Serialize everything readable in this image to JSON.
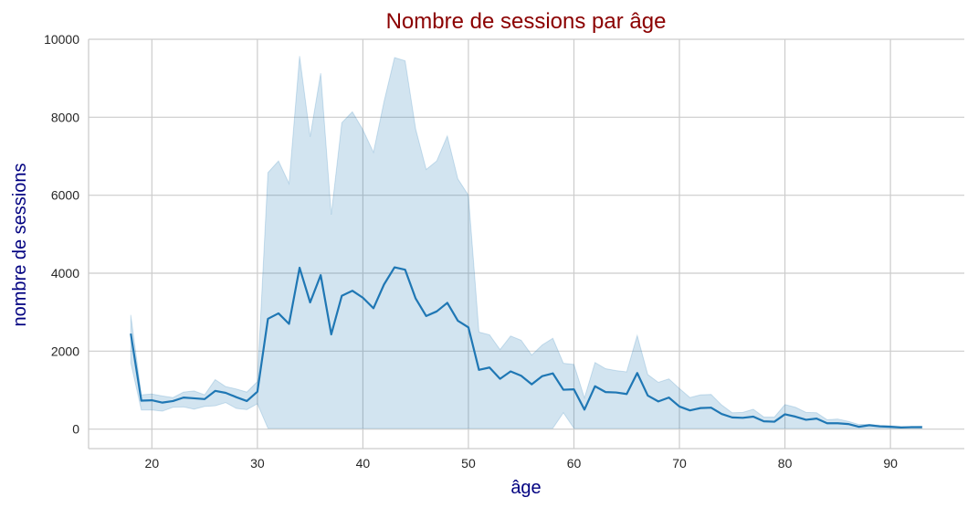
{
  "chart_data": {
    "type": "line",
    "title": "Nombre de sessions par âge",
    "xlabel": "âge",
    "ylabel": "nombre de sessions",
    "xlim": [
      14,
      97
    ],
    "ylim": [
      -500,
      10000
    ],
    "xticks": [
      20,
      30,
      40,
      50,
      60,
      70,
      80,
      90
    ],
    "yticks": [
      0,
      2000,
      4000,
      6000,
      8000,
      10000
    ],
    "grid": true,
    "colors": {
      "title": "#8b0000",
      "labels": "#000080",
      "line": "#1f77b4",
      "band": "#1f77b4",
      "grid": "#cccccc",
      "spine": "#cccccc"
    },
    "x": [
      18,
      19,
      20,
      21,
      22,
      23,
      24,
      25,
      26,
      27,
      28,
      29,
      30,
      31,
      32,
      33,
      34,
      35,
      36,
      37,
      38,
      39,
      40,
      41,
      42,
      43,
      44,
      45,
      46,
      47,
      48,
      49,
      50,
      51,
      52,
      53,
      54,
      55,
      56,
      57,
      58,
      59,
      60,
      61,
      62,
      63,
      64,
      65,
      66,
      67,
      68,
      69,
      70,
      71,
      72,
      73,
      74,
      75,
      76,
      77,
      78,
      79,
      80,
      81,
      82,
      83,
      84,
      85,
      86,
      87,
      88,
      89,
      90,
      91,
      92,
      93
    ],
    "series": [
      {
        "values": [
          2450,
          730,
          740,
          680,
          720,
          810,
          790,
          770,
          980,
          930,
          820,
          720,
          960,
          2830,
          2970,
          2700,
          4140,
          3250,
          3950,
          2430,
          3420,
          3550,
          3370,
          3100,
          3710,
          4150,
          4090,
          3350,
          2900,
          3020,
          3240,
          2780,
          2610,
          1520,
          1580,
          1290,
          1480,
          1370,
          1150,
          1360,
          1430,
          1010,
          1020,
          500,
          1100,
          950,
          940,
          900,
          1440,
          860,
          710,
          810,
          580,
          480,
          540,
          550,
          390,
          300,
          290,
          320,
          200,
          190,
          380,
          320,
          240,
          270,
          150,
          150,
          130,
          60,
          100,
          70,
          60,
          40,
          50,
          50
        ],
        "lower": [
          1700,
          490,
          490,
          460,
          560,
          570,
          510,
          580,
          600,
          680,
          530,
          500,
          650,
          20,
          20,
          20,
          20,
          20,
          20,
          20,
          20,
          20,
          20,
          20,
          20,
          20,
          20,
          20,
          20,
          20,
          20,
          20,
          20,
          20,
          20,
          20,
          20,
          20,
          20,
          20,
          20,
          420,
          20,
          20,
          20,
          20,
          20,
          20,
          20,
          20,
          20,
          20,
          20,
          20,
          20,
          20,
          20,
          20,
          20,
          20,
          20,
          20,
          20,
          20,
          20,
          20,
          20,
          20,
          20,
          20,
          20,
          20,
          20,
          20,
          20,
          20
        ],
        "upper": [
          2930,
          880,
          900,
          850,
          810,
          950,
          980,
          880,
          1270,
          1090,
          1030,
          950,
          1220,
          6580,
          6880,
          6300,
          9570,
          7500,
          9130,
          5500,
          7860,
          8140,
          7680,
          7100,
          8400,
          9530,
          9450,
          7700,
          6660,
          6880,
          7520,
          6420,
          6000,
          2490,
          2420,
          2040,
          2390,
          2280,
          1900,
          2160,
          2330,
          1690,
          1660,
          800,
          1710,
          1550,
          1500,
          1470,
          2400,
          1400,
          1200,
          1290,
          1040,
          810,
          880,
          890,
          620,
          420,
          430,
          510,
          310,
          310,
          630,
          560,
          430,
          420,
          240,
          260,
          200,
          120,
          120,
          100,
          90,
          70,
          60,
          70
        ]
      }
    ]
  }
}
